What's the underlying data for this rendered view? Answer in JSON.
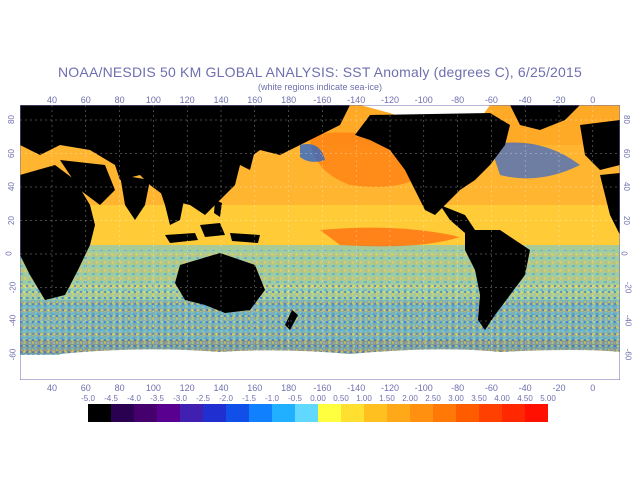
{
  "title": "NOAA/NESDIS 50 KM GLOBAL ANALYSIS: SST Anomaly (degrees C), 6/25/2015",
  "subtitle": "(white regions indicate sea-ice)",
  "lon_labels": [
    "40",
    "60",
    "80",
    "100",
    "120",
    "140",
    "160",
    "180",
    "-160",
    "-140",
    "-120",
    "-100",
    "-80",
    "-60",
    "-40",
    "-20",
    "0"
  ],
  "lat_labels": [
    "80",
    "60",
    "40",
    "20",
    "0",
    "-20",
    "-40",
    "-60"
  ],
  "colorbar": {
    "labels": [
      "-5.0",
      "-4.5",
      "-4.0",
      "-3.5",
      "-3.0",
      "-2.5",
      "-2.0",
      "-1.5",
      "-1.0",
      "-0.5",
      "0.00",
      "0.50",
      "1.00",
      "1.50",
      "2.00",
      "2.50",
      "3.00",
      "3.50",
      "4.00",
      "4.50",
      "5.00"
    ],
    "colors": [
      "#000000",
      "#2a0050",
      "#45006e",
      "#5a0090",
      "#4020b0",
      "#2030d0",
      "#1050e8",
      "#1080ff",
      "#20b0ff",
      "#60d8ff",
      "#ffff40",
      "#ffe030",
      "#ffc020",
      "#ffa818",
      "#ff9010",
      "#ff7808",
      "#ff5c00",
      "#ff4000",
      "#ff2800",
      "#ff1000"
    ]
  },
  "colors": {
    "land": "#000000",
    "ice": "#ffffff",
    "text": "#6f6fb0"
  }
}
